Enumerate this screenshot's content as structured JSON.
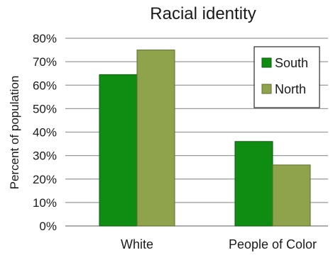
{
  "chart_data": {
    "type": "bar",
    "title": "Racial identity",
    "xlabel": "",
    "ylabel": "Percent of population",
    "categories": [
      "White",
      "People of Color"
    ],
    "series": [
      {
        "name": "South",
        "values": [
          64.5,
          36
        ],
        "color": "#0f8c12",
        "stroke": "#0b5e0d"
      },
      {
        "name": "North",
        "values": [
          75,
          26
        ],
        "color": "#8ea34c",
        "stroke": "#5f6e2e"
      }
    ],
    "ylim": [
      0,
      80
    ],
    "yticks": [
      0,
      10,
      20,
      30,
      40,
      50,
      60,
      70,
      80
    ],
    "ytick_labels": [
      "0%",
      "10%",
      "20%",
      "30%",
      "40%",
      "50%",
      "60%",
      "70%",
      "80%"
    ],
    "grid": true,
    "legend_position": "top-right"
  }
}
